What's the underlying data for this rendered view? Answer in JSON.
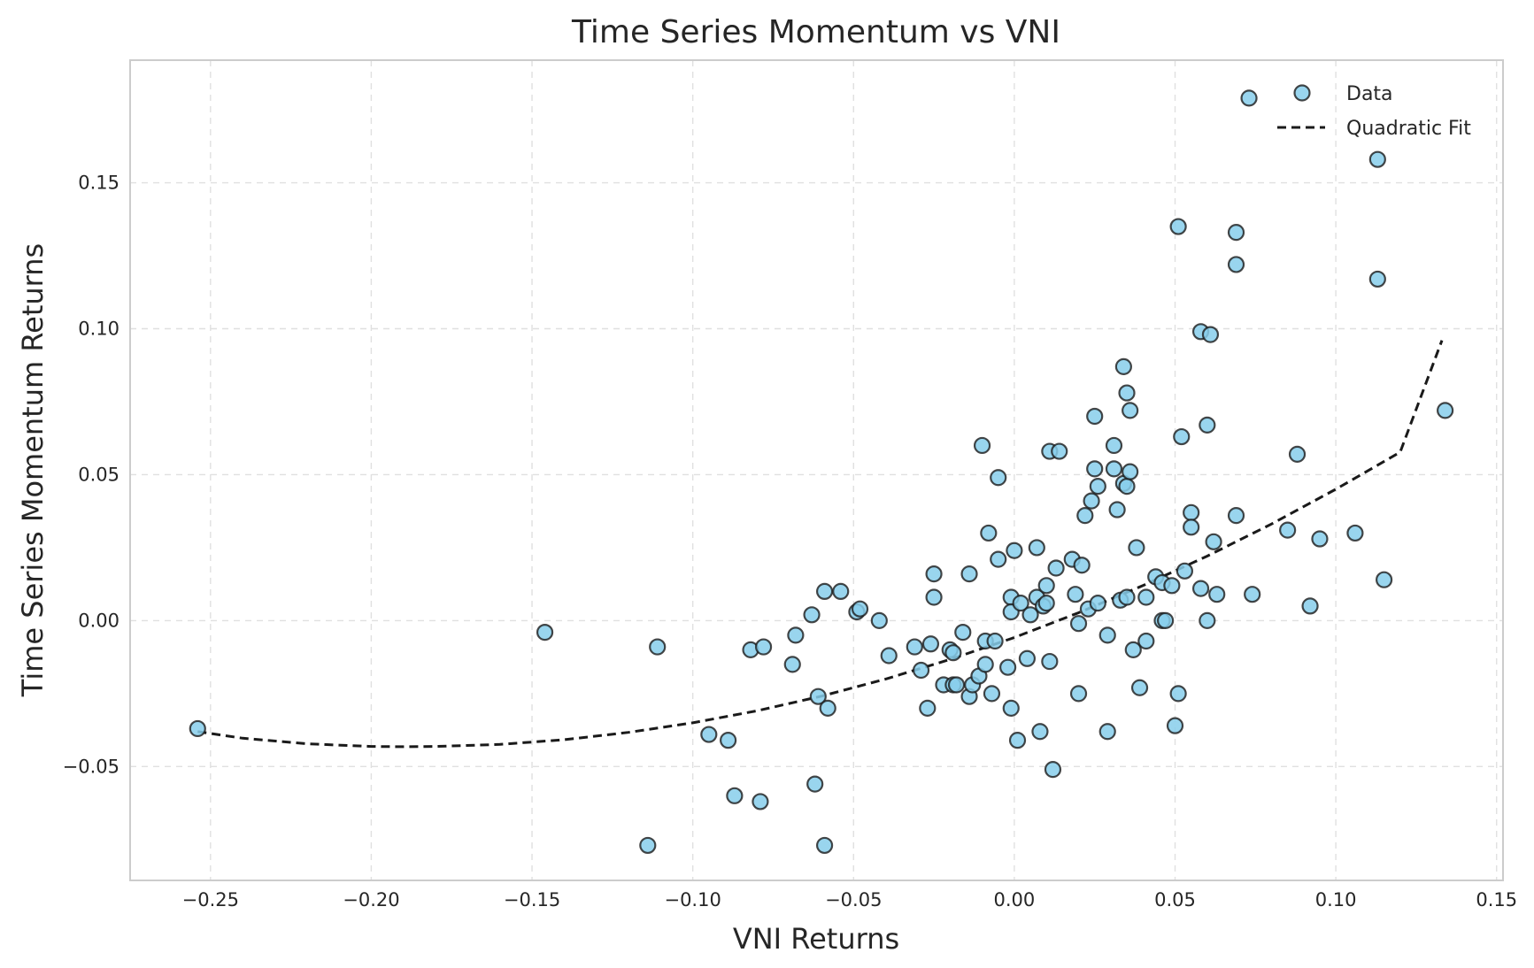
{
  "chart_data": {
    "type": "scatter",
    "title": "Time Series Momentum vs VNI",
    "xlabel": "VNI Returns",
    "ylabel": "Time Series Momentum Returns",
    "xlim": [
      -0.275,
      0.152
    ],
    "ylim": [
      -0.089,
      0.192
    ],
    "x_ticks": [
      -0.25,
      -0.2,
      -0.15,
      -0.1,
      -0.05,
      0.0,
      0.05,
      0.1,
      0.15
    ],
    "x_tick_labels": [
      "−0.25",
      "−0.20",
      "−0.15",
      "−0.10",
      "−0.05",
      "0.00",
      "0.05",
      "0.10",
      "0.15"
    ],
    "y_ticks": [
      -0.05,
      0.0,
      0.05,
      0.1,
      0.15
    ],
    "y_tick_labels": [
      "−0.05",
      "0.00",
      "0.05",
      "0.10",
      "0.15"
    ],
    "grid": true,
    "legend_position": "top-right",
    "legend": [
      "Data",
      "Quadratic Fit"
    ],
    "marker_color": "#87CEEB",
    "fit_color": "#1a1a1a",
    "series": [
      {
        "name": "Data",
        "kind": "scatter",
        "points": [
          [
            -0.254,
            -0.037
          ],
          [
            -0.146,
            -0.004
          ],
          [
            -0.114,
            -0.077
          ],
          [
            -0.111,
            -0.009
          ],
          [
            -0.095,
            -0.039
          ],
          [
            -0.089,
            -0.041
          ],
          [
            -0.087,
            -0.06
          ],
          [
            -0.082,
            -0.01
          ],
          [
            -0.079,
            -0.062
          ],
          [
            -0.078,
            -0.009
          ],
          [
            -0.069,
            -0.015
          ],
          [
            -0.068,
            -0.005
          ],
          [
            -0.063,
            0.002
          ],
          [
            -0.062,
            -0.056
          ],
          [
            -0.061,
            -0.026
          ],
          [
            -0.059,
            0.01
          ],
          [
            -0.059,
            -0.077
          ],
          [
            -0.058,
            -0.03
          ],
          [
            -0.054,
            0.01
          ],
          [
            -0.049,
            0.003
          ],
          [
            -0.048,
            0.004
          ],
          [
            -0.042,
            0.0
          ],
          [
            -0.039,
            -0.012
          ],
          [
            -0.031,
            -0.009
          ],
          [
            -0.029,
            -0.017
          ],
          [
            -0.027,
            -0.03
          ],
          [
            -0.026,
            -0.008
          ],
          [
            -0.025,
            0.016
          ],
          [
            -0.025,
            0.008
          ],
          [
            -0.022,
            -0.022
          ],
          [
            -0.02,
            -0.01
          ],
          [
            -0.019,
            -0.011
          ],
          [
            -0.019,
            -0.022
          ],
          [
            -0.018,
            -0.022
          ],
          [
            -0.016,
            -0.004
          ],
          [
            -0.014,
            0.016
          ],
          [
            -0.014,
            -0.026
          ],
          [
            -0.013,
            -0.022
          ],
          [
            -0.011,
            -0.019
          ],
          [
            -0.01,
            0.06
          ],
          [
            -0.009,
            -0.015
          ],
          [
            -0.009,
            -0.007
          ],
          [
            -0.008,
            0.03
          ],
          [
            -0.007,
            -0.025
          ],
          [
            -0.006,
            -0.007
          ],
          [
            -0.005,
            0.021
          ],
          [
            -0.005,
            0.049
          ],
          [
            -0.002,
            -0.016
          ],
          [
            -0.001,
            0.008
          ],
          [
            -0.001,
            -0.03
          ],
          [
            -0.001,
            0.003
          ],
          [
            0.0,
            0.024
          ],
          [
            0.001,
            -0.041
          ],
          [
            0.002,
            0.006
          ],
          [
            0.004,
            -0.013
          ],
          [
            0.005,
            0.002
          ],
          [
            0.007,
            0.025
          ],
          [
            0.007,
            0.008
          ],
          [
            0.008,
            -0.038
          ],
          [
            0.009,
            0.005
          ],
          [
            0.01,
            0.012
          ],
          [
            0.01,
            0.006
          ],
          [
            0.011,
            -0.014
          ],
          [
            0.011,
            0.058
          ],
          [
            0.012,
            -0.051
          ],
          [
            0.013,
            0.018
          ],
          [
            0.014,
            0.058
          ],
          [
            0.018,
            0.021
          ],
          [
            0.019,
            0.009
          ],
          [
            0.02,
            -0.001
          ],
          [
            0.02,
            -0.025
          ],
          [
            0.021,
            0.019
          ],
          [
            0.022,
            0.036
          ],
          [
            0.023,
            0.004
          ],
          [
            0.024,
            0.041
          ],
          [
            0.025,
            0.052
          ],
          [
            0.025,
            0.07
          ],
          [
            0.026,
            0.046
          ],
          [
            0.026,
            0.006
          ],
          [
            0.029,
            -0.005
          ],
          [
            0.029,
            -0.038
          ],
          [
            0.031,
            0.052
          ],
          [
            0.031,
            0.06
          ],
          [
            0.032,
            0.038
          ],
          [
            0.033,
            0.007
          ],
          [
            0.034,
            0.087
          ],
          [
            0.034,
            0.047
          ],
          [
            0.035,
            0.078
          ],
          [
            0.035,
            0.046
          ],
          [
            0.035,
            0.008
          ],
          [
            0.036,
            0.072
          ],
          [
            0.036,
            0.051
          ],
          [
            0.037,
            -0.01
          ],
          [
            0.038,
            0.025
          ],
          [
            0.039,
            -0.023
          ],
          [
            0.041,
            0.008
          ],
          [
            0.041,
            -0.007
          ],
          [
            0.044,
            0.015
          ],
          [
            0.046,
            0.013
          ],
          [
            0.046,
            0.0
          ],
          [
            0.047,
            0.0
          ],
          [
            0.049,
            0.012
          ],
          [
            0.05,
            -0.036
          ],
          [
            0.051,
            -0.025
          ],
          [
            0.051,
            0.135
          ],
          [
            0.052,
            0.063
          ],
          [
            0.053,
            0.017
          ],
          [
            0.055,
            0.037
          ],
          [
            0.055,
            0.032
          ],
          [
            0.058,
            0.099
          ],
          [
            0.058,
            0.011
          ],
          [
            0.06,
            0.0
          ],
          [
            0.06,
            0.067
          ],
          [
            0.061,
            0.098
          ],
          [
            0.062,
            0.027
          ],
          [
            0.063,
            0.009
          ],
          [
            0.069,
            0.036
          ],
          [
            0.069,
            0.133
          ],
          [
            0.069,
            0.122
          ],
          [
            0.073,
            0.179
          ],
          [
            0.074,
            0.009
          ],
          [
            0.085,
            0.031
          ],
          [
            0.088,
            0.057
          ],
          [
            0.092,
            0.005
          ],
          [
            0.095,
            0.028
          ],
          [
            0.106,
            0.03
          ],
          [
            0.113,
            0.158
          ],
          [
            0.113,
            0.117
          ],
          [
            0.115,
            0.014
          ],
          [
            0.134,
            0.072
          ]
        ]
      },
      {
        "name": "Quadratic Fit",
        "kind": "line",
        "points": [
          [
            -0.254,
            -0.038
          ],
          [
            -0.24,
            -0.0403
          ],
          [
            -0.22,
            -0.0422
          ],
          [
            -0.2,
            -0.0431
          ],
          [
            -0.19,
            -0.0432
          ],
          [
            -0.18,
            -0.0431
          ],
          [
            -0.16,
            -0.0424
          ],
          [
            -0.14,
            -0.0408
          ],
          [
            -0.12,
            -0.0383
          ],
          [
            -0.1,
            -0.035
          ],
          [
            -0.08,
            -0.0309
          ],
          [
            -0.06,
            -0.0259
          ],
          [
            -0.04,
            -0.02
          ],
          [
            -0.02,
            -0.0133
          ],
          [
            0.0,
            -0.0058
          ],
          [
            0.02,
            0.0027
          ],
          [
            0.04,
            0.012
          ],
          [
            0.06,
            0.0221
          ],
          [
            0.08,
            0.0331
          ],
          [
            0.1,
            0.045
          ],
          [
            0.12,
            0.0577
          ],
          [
            0.133,
            0.096
          ]
        ]
      }
    ]
  }
}
